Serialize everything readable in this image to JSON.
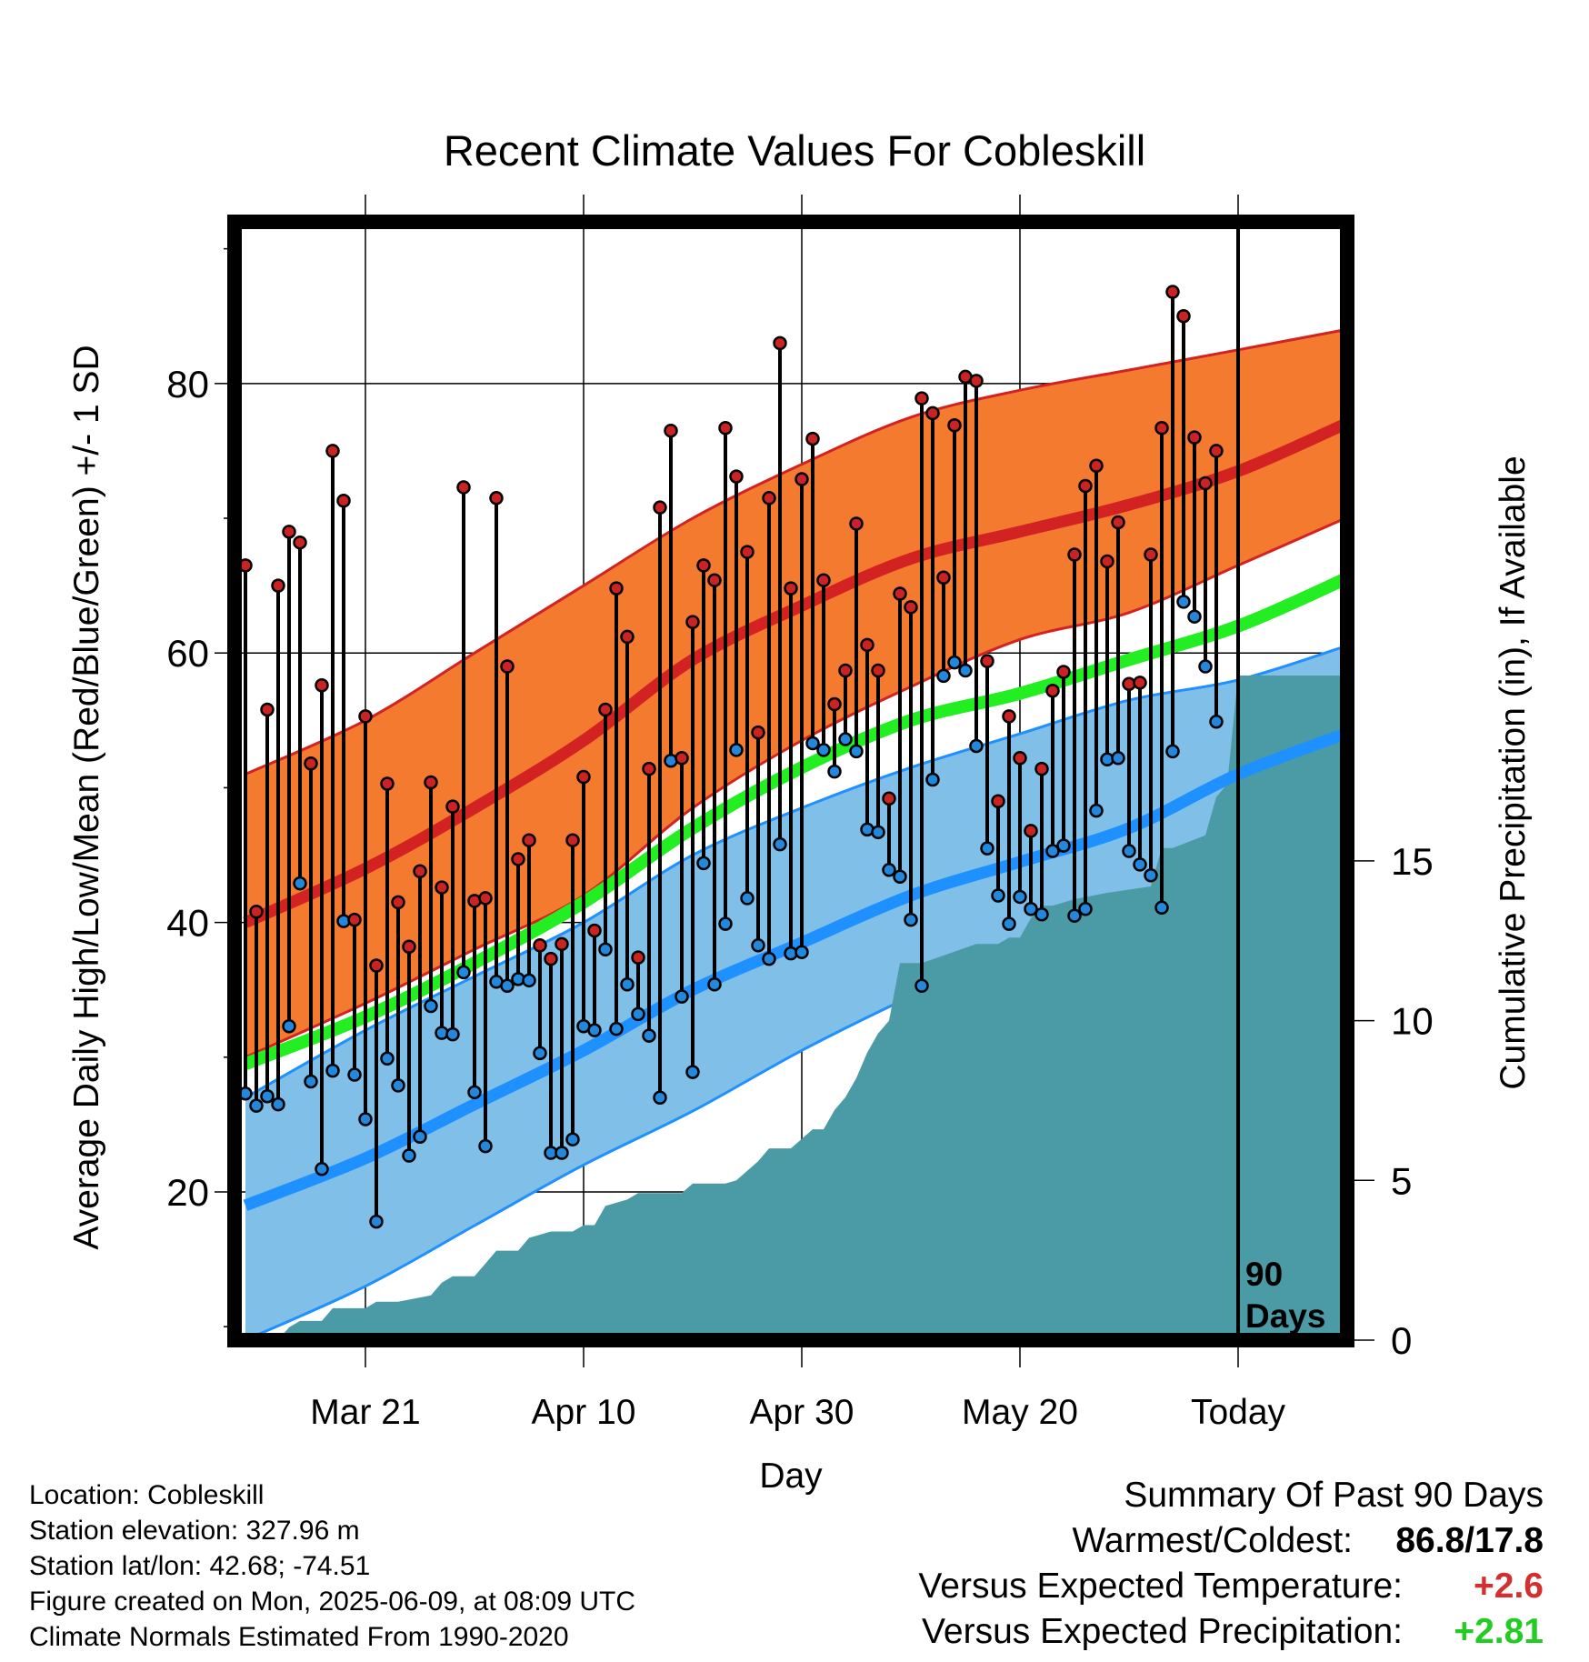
{
  "title": "Recent Climate Values For Cobleskill",
  "chart_data": {
    "type": "line",
    "title": "Recent Climate Values For Cobleskill",
    "xlabel": "Day",
    "ylabel": "Average Daily High/Low/Mean (Red/Blue/Green) +/- 1 SD",
    "y2label": "Cumulative Precipitation (in), If Available",
    "x_ticks": [
      {
        "day": 21,
        "label": "Mar 21"
      },
      {
        "day": 41,
        "label": "Apr 10"
      },
      {
        "day": 61,
        "label": "Apr 30"
      },
      {
        "day": 81,
        "label": "May 20"
      },
      {
        "day": 101,
        "label": "Today"
      }
    ],
    "xlim": [
      9,
      111
    ],
    "ylim": [
      9,
      92
    ],
    "y_ticks": [
      20,
      40,
      60,
      80
    ],
    "y2lim": [
      0,
      35
    ],
    "y2_ticks": [
      0,
      5,
      10,
      15
    ],
    "today_marker": {
      "day": 101,
      "label_top": "90",
      "label_bottom": "Days"
    },
    "colors": {
      "high_band": "#f47a30",
      "high_line": "#d32222",
      "low_band": "#7fbfe8",
      "low_line": "#1e90ff",
      "mean_line": "#22ee22",
      "precip": "#4a9ba5",
      "high_dot": "#cc2222",
      "low_dot": "#2288dd"
    },
    "normals": {
      "x": [
        9,
        21,
        31,
        41,
        51,
        61,
        71,
        81,
        91,
        101,
        111
      ],
      "high": [
        40.0,
        44.0,
        48.5,
        53.5,
        59.5,
        63.5,
        67.0,
        69.0,
        71.0,
        73.5,
        77.0
      ],
      "high_upper": [
        51.0,
        55.0,
        60.0,
        65.0,
        70.0,
        74.0,
        77.5,
        79.5,
        81.0,
        82.5,
        84.0
      ],
      "high_lower": [
        30.0,
        34.0,
        38.0,
        42.0,
        48.5,
        53.5,
        57.5,
        61.0,
        63.0,
        66.5,
        70.0
      ],
      "low": [
        19.0,
        22.5,
        26.5,
        30.5,
        35.0,
        38.5,
        42.0,
        44.5,
        47.0,
        51.0,
        54.0
      ],
      "low_upper": [
        27.0,
        32.0,
        36.0,
        40.0,
        45.0,
        48.5,
        51.5,
        54.0,
        56.5,
        58.0,
        60.5
      ],
      "low_lower": [
        9.0,
        13.0,
        17.5,
        22.0,
        26.0,
        30.5,
        34.5,
        38.0,
        40.5,
        44.5,
        48.0
      ],
      "mean": [
        29.5,
        33.0,
        37.0,
        41.5,
        47.0,
        51.5,
        55.0,
        57.0,
        59.5,
        62.0,
        65.5
      ]
    },
    "daily": {
      "day": [
        9,
        10,
        11,
        12,
        13,
        14,
        15,
        16,
        17,
        18,
        19,
        20,
        21,
        22,
        23,
        24,
        25,
        26,
        27,
        28,
        29,
        30,
        31,
        32,
        33,
        34,
        35,
        36,
        37,
        38,
        39,
        40,
        41,
        42,
        43,
        44,
        45,
        46,
        47,
        48,
        49,
        50,
        51,
        52,
        53,
        54,
        55,
        56,
        57,
        58,
        59,
        60,
        61,
        62,
        63,
        64,
        65,
        66,
        67,
        68,
        69,
        70,
        71,
        72,
        73,
        74,
        75,
        76,
        77,
        78,
        79,
        80,
        81,
        82,
        83,
        84,
        85,
        86,
        87,
        88,
        89,
        90,
        91,
        92,
        93,
        94,
        95,
        96,
        97,
        98
      ],
      "high": [
        66.5,
        40.8,
        55.8,
        65.0,
        69.0,
        68.2,
        51.8,
        57.6,
        75.0,
        71.3,
        40.2,
        55.3,
        36.8,
        50.3,
        41.5,
        38.2,
        43.8,
        50.4,
        42.6,
        48.6,
        72.3,
        41.6,
        41.8,
        71.5,
        59.0,
        44.7,
        46.1,
        38.3,
        37.3,
        38.4,
        46.1,
        50.8,
        39.4,
        55.8,
        64.8,
        61.2,
        37.4,
        51.4,
        70.8,
        76.5,
        52.2,
        62.3,
        66.5,
        65.4,
        76.7,
        73.1,
        67.5,
        54.1,
        71.5,
        83.0,
        64.8,
        72.9,
        75.9,
        65.4,
        56.2,
        58.7,
        69.6,
        60.6,
        58.7,
        49.2,
        64.4,
        63.4,
        78.9,
        77.8,
        65.6,
        76.9,
        80.5,
        80.2,
        59.4,
        49.0,
        55.3,
        52.2,
        46.8,
        51.4,
        57.2,
        58.6,
        67.3,
        72.4,
        73.9,
        66.8,
        69.7,
        57.7,
        57.8,
        67.3,
        76.7,
        86.8,
        85.0,
        76.0,
        72.6,
        75.0
      ],
      "low": [
        27.3,
        26.4,
        27.1,
        26.5,
        32.3,
        42.9,
        28.2,
        21.7,
        29.0,
        40.1,
        28.7,
        25.4,
        17.8,
        29.9,
        27.9,
        22.7,
        24.1,
        33.8,
        31.8,
        31.7,
        36.3,
        27.4,
        23.4,
        35.6,
        35.3,
        35.8,
        35.7,
        30.3,
        22.9,
        22.9,
        23.9,
        32.3,
        32.0,
        38.0,
        32.1,
        35.4,
        33.2,
        31.6,
        27.0,
        52.0,
        34.5,
        28.9,
        44.4,
        35.4,
        39.9,
        52.8,
        41.8,
        38.3,
        37.3,
        45.8,
        37.7,
        37.8,
        53.3,
        52.8,
        51.2,
        53.6,
        52.7,
        46.9,
        46.7,
        43.9,
        43.4,
        40.2,
        35.3,
        50.6,
        58.3,
        59.3,
        58.7,
        53.1,
        45.5,
        42.0,
        39.9,
        41.9,
        41.0,
        40.6,
        45.3,
        45.7,
        40.5,
        41.0,
        48.3,
        52.1,
        52.2,
        45.3,
        44.3,
        43.5,
        41.1,
        52.7,
        63.8,
        62.7,
        59.0,
        54.9
      ]
    },
    "precip": {
      "day": [
        9,
        13,
        14,
        15,
        17,
        18,
        21,
        22,
        24,
        27,
        28,
        29,
        30,
        31,
        32,
        33,
        35,
        36,
        38,
        40,
        41,
        42,
        43,
        45,
        46,
        49,
        50,
        51,
        54,
        55,
        57,
        58,
        59,
        60,
        62,
        63,
        64,
        65,
        66,
        67,
        68,
        69,
        70,
        72,
        77,
        79,
        80,
        81,
        82,
        83,
        84,
        86,
        89,
        93,
        94,
        95,
        98,
        99,
        100,
        101,
        110,
        111
      ],
      "value": [
        0,
        0,
        0.4,
        0.6,
        0.6,
        1.0,
        1.0,
        1.2,
        1.2,
        1.4,
        1.8,
        2.0,
        2.0,
        2.0,
        2.4,
        2.8,
        2.8,
        3.2,
        3.4,
        3.4,
        3.6,
        3.6,
        4.2,
        4.4,
        4.6,
        4.6,
        4.6,
        4.9,
        4.9,
        5.0,
        5.6,
        6.0,
        6.0,
        6.0,
        6.6,
        6.6,
        7.2,
        7.6,
        8.2,
        9.0,
        9.6,
        10.0,
        11.8,
        11.8,
        12.4,
        12.4,
        12.6,
        12.6,
        13.2,
        13.6,
        13.6,
        13.8,
        14.0,
        14.2,
        15.4,
        15.4,
        15.8,
        17.0,
        17.4,
        20.8,
        20.8,
        20.8
      ]
    }
  },
  "footer": {
    "location": "Location: Cobleskill",
    "elevation": "Station elevation: 327.96 m",
    "latlon": "Station lat/lon: 42.68; -74.51",
    "created": "Figure created on Mon, 2025-06-09, at 08:09 UTC",
    "normals": "Climate Normals Estimated From 1990-2020"
  },
  "summary": {
    "heading": "Summary Of Past 90 Days",
    "warmest_label": "Warmest/Coldest:",
    "warmest_value": "86.8/17.8",
    "temp_label": "Versus Expected Temperature:",
    "temp_value": "+2.6",
    "precip_label": "Versus Expected Precipitation:",
    "precip_value": "+2.81"
  }
}
